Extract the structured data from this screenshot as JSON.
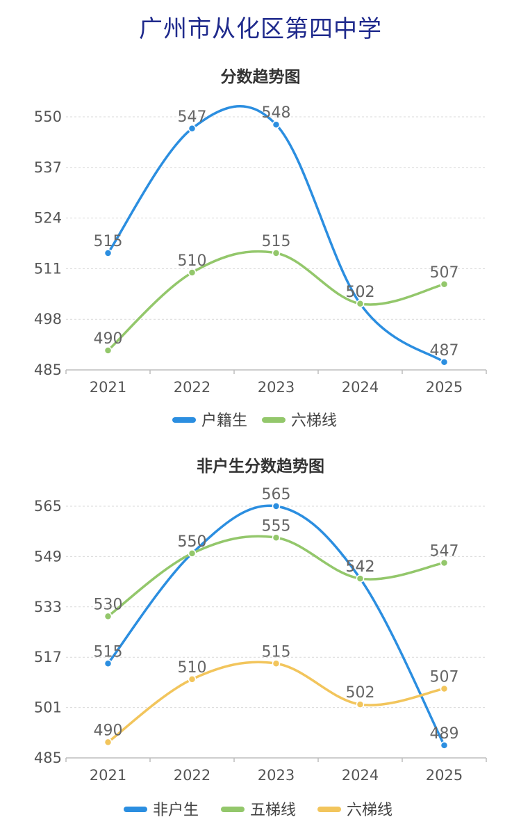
{
  "page": {
    "title": "广州市从化区第四中学"
  },
  "chart_data": [
    {
      "type": "line",
      "title": "分数趋势图",
      "categories": [
        "2021",
        "2022",
        "2023",
        "2024",
        "2025"
      ],
      "ylim": [
        485,
        550
      ],
      "yticks": [
        485,
        498,
        511,
        524,
        537,
        550
      ],
      "grid": true,
      "legend_position": "bottom",
      "series": [
        {
          "name": "户籍生",
          "color": "#2b8ee0",
          "values": [
            515,
            547,
            548,
            502,
            487
          ]
        },
        {
          "name": "六梯线",
          "color": "#93c76b",
          "values": [
            490,
            510,
            515,
            502,
            507
          ]
        }
      ]
    },
    {
      "type": "line",
      "title": "非户生分数趋势图",
      "categories": [
        "2021",
        "2022",
        "2023",
        "2024",
        "2025"
      ],
      "ylim": [
        485,
        565
      ],
      "yticks": [
        485,
        501,
        517,
        533,
        549,
        565
      ],
      "grid": true,
      "legend_position": "bottom",
      "series": [
        {
          "name": "非户生",
          "color": "#2b8ee0",
          "values": [
            515,
            550,
            565,
            542,
            489
          ]
        },
        {
          "name": "五梯线",
          "color": "#93c76b",
          "values": [
            530,
            550,
            555,
            542,
            547
          ]
        },
        {
          "name": "六梯线",
          "color": "#f2c55c",
          "values": [
            490,
            510,
            515,
            502,
            507
          ]
        }
      ]
    }
  ]
}
